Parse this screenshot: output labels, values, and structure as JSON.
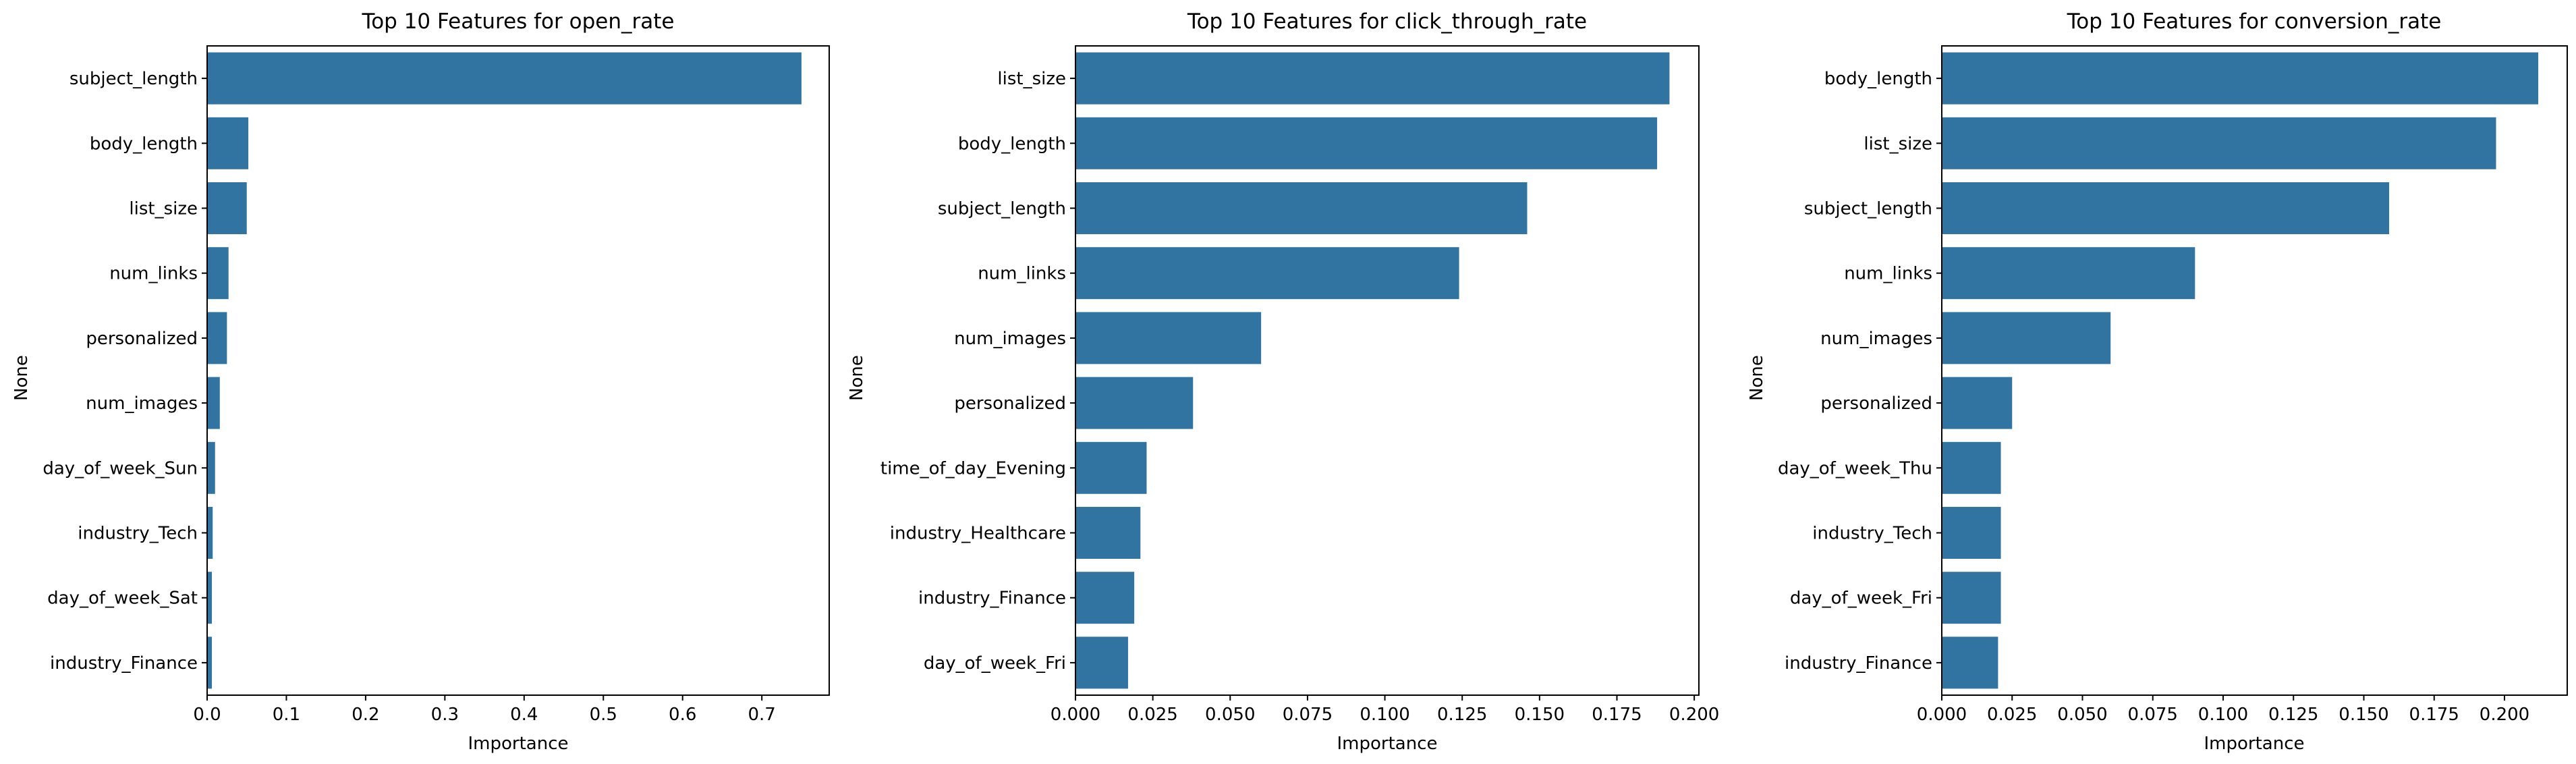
{
  "colors": {
    "bar": "#3274a1",
    "axis": "#000000",
    "background": "#ffffff"
  },
  "chart_data": [
    {
      "type": "bar",
      "orientation": "horizontal",
      "title": "Top 10 Features for open_rate",
      "xlabel": "Importance",
      "ylabel": "None",
      "categories": [
        "subject_length",
        "body_length",
        "list_size",
        "num_links",
        "personalized",
        "num_images",
        "day_of_week_Sun",
        "industry_Tech",
        "day_of_week_Sat",
        "industry_Finance"
      ],
      "values": [
        0.75,
        0.052,
        0.05,
        0.027,
        0.025,
        0.016,
        0.01,
        0.007,
        0.006,
        0.006
      ],
      "xlim": [
        0,
        0.785
      ],
      "xticks": [
        0,
        0.1,
        0.2,
        0.3,
        0.4,
        0.5,
        0.6,
        0.7
      ],
      "xtick_labels": [
        "0.0",
        "0.1",
        "0.2",
        "0.3",
        "0.4",
        "0.5",
        "0.6",
        "0.7"
      ],
      "grid": false
    },
    {
      "type": "bar",
      "orientation": "horizontal",
      "title": "Top 10 Features for click_through_rate",
      "xlabel": "Importance",
      "ylabel": "None",
      "categories": [
        "list_size",
        "body_length",
        "subject_length",
        "num_links",
        "num_images",
        "personalized",
        "time_of_day_Evening",
        "industry_Healthcare",
        "industry_Finance",
        "day_of_week_Fri"
      ],
      "values": [
        0.192,
        0.188,
        0.146,
        0.124,
        0.06,
        0.038,
        0.023,
        0.021,
        0.019,
        0.017
      ],
      "xlim": [
        0,
        0.2015
      ],
      "xticks": [
        0,
        0.025,
        0.05,
        0.075,
        0.1,
        0.125,
        0.15,
        0.175,
        0.2
      ],
      "xtick_labels": [
        "0.000",
        "0.025",
        "0.050",
        "0.075",
        "0.100",
        "0.125",
        "0.150",
        "0.175",
        "0.200"
      ],
      "grid": false
    },
    {
      "type": "bar",
      "orientation": "horizontal",
      "title": "Top 10 Features for conversion_rate",
      "xlabel": "Importance",
      "ylabel": "None",
      "categories": [
        "body_length",
        "list_size",
        "subject_length",
        "num_links",
        "num_images",
        "personalized",
        "day_of_week_Thu",
        "industry_Tech",
        "day_of_week_Fri",
        "industry_Finance"
      ],
      "values": [
        0.212,
        0.197,
        0.159,
        0.09,
        0.06,
        0.025,
        0.021,
        0.021,
        0.021,
        0.02
      ],
      "xlim": [
        0,
        0.2223
      ],
      "xticks": [
        0,
        0.025,
        0.05,
        0.075,
        0.1,
        0.125,
        0.15,
        0.175,
        0.2
      ],
      "xtick_labels": [
        "0.000",
        "0.025",
        "0.050",
        "0.075",
        "0.100",
        "0.125",
        "0.150",
        "0.175",
        "0.200"
      ],
      "grid": false
    }
  ]
}
